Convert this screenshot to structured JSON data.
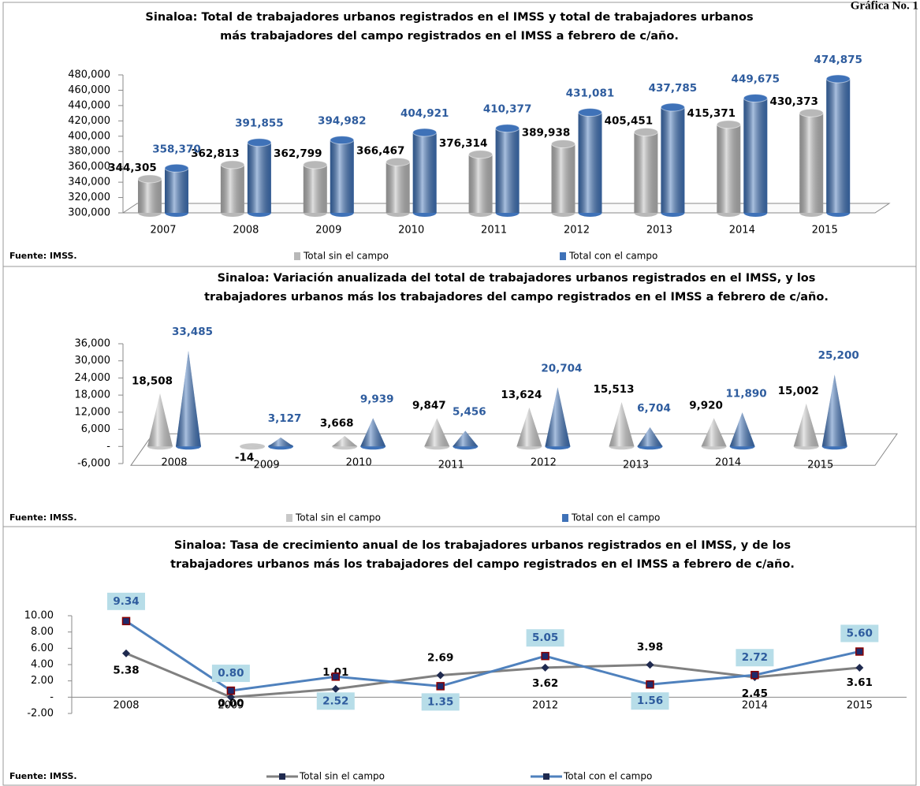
{
  "header": {
    "label": "Gráfica No. 1"
  },
  "chart_data": [
    {
      "type": "bar",
      "title": [
        "Sinaloa: Total de trabajadores urbanos registrados en el IMSS y total de trabajadores urbanos",
        "más trabajadores del campo registrados en el IMSS a febrero de c/año."
      ],
      "source": "Fuente: IMSS.",
      "categories": [
        "2007",
        "2008",
        "2009",
        "2010",
        "2011",
        "2012",
        "2013",
        "2014",
        "2015"
      ],
      "series": [
        {
          "name": "Total sin el campo",
          "color": "#b8b8b8",
          "values": [
            344305,
            362813,
            362799,
            366467,
            376314,
            389938,
            405451,
            415371,
            430373
          ],
          "value_labels": [
            "344,305",
            "362,813",
            "362,799",
            "366,467",
            "376,314",
            "389,938",
            "405,451",
            "415,371",
            "430,373"
          ]
        },
        {
          "name": "Total con el campo",
          "color": "#3f72b8",
          "values": [
            358370,
            391855,
            394982,
            404921,
            410377,
            431081,
            437785,
            449675,
            474875
          ],
          "value_labels": [
            "358,370",
            "391,855",
            "394,982",
            "404,921",
            "410,377",
            "431,081",
            "437,785",
            "449,675",
            "474,875"
          ]
        }
      ],
      "ylim": [
        300000,
        480000
      ],
      "yticks": [
        {
          "value": 300000,
          "label": "300,000"
        },
        {
          "value": 320000,
          "label": "320,000"
        },
        {
          "value": 340000,
          "label": "340,000"
        },
        {
          "value": 360000,
          "label": "360,000"
        },
        {
          "value": 380000,
          "label": "380,000"
        },
        {
          "value": 400000,
          "label": "400,000"
        },
        {
          "value": 420000,
          "label": "420,000"
        },
        {
          "value": 440000,
          "label": "440,000"
        },
        {
          "value": 460000,
          "label": "460,000"
        },
        {
          "value": 480000,
          "label": "480,000"
        }
      ]
    },
    {
      "type": "cone",
      "title": [
        "Sinaloa: Variación anualizada del total de trabajadores urbanos registrados en el IMSS, y los",
        "trabajadores urbanos más los trabajadores del campo registrados en el IMSS a febrero de c/año."
      ],
      "source": "Fuente: IMSS.",
      "categories": [
        "2008",
        "2009",
        "2010",
        "2011",
        "2012",
        "2013",
        "2014",
        "2015"
      ],
      "series": [
        {
          "name": "Total sin el campo",
          "color": "#c8c8c8",
          "values": [
            18508,
            -14,
            3668,
            9847,
            13624,
            15513,
            9920,
            15002
          ],
          "value_labels": [
            "18,508",
            "-14",
            "3,668",
            "9,847",
            "13,624",
            "15,513",
            "9,920",
            "15,002"
          ]
        },
        {
          "name": "Total con el campo",
          "color": "#3f72b8",
          "values": [
            33485,
            3127,
            9939,
            5456,
            20704,
            6704,
            11890,
            25200
          ],
          "value_labels": [
            "33,485",
            "3,127",
            "9,939",
            "5,456",
            "20,704",
            "6,704",
            "11,890",
            "25,200"
          ]
        }
      ],
      "ylim": [
        -6000,
        36000
      ],
      "yticks": [
        {
          "value": -6000,
          "label": "-6,000"
        },
        {
          "value": 0,
          "label": "-"
        },
        {
          "value": 6000,
          "label": "6,000"
        },
        {
          "value": 12000,
          "label": "12,000"
        },
        {
          "value": 18000,
          "label": "18,000"
        },
        {
          "value": 24000,
          "label": "24,000"
        },
        {
          "value": 30000,
          "label": "30,000"
        },
        {
          "value": 36000,
          "label": "36,000"
        }
      ]
    },
    {
      "type": "line",
      "title": [
        "Sinaloa: Tasa de crecimiento anual de los trabajadores urbanos registrados en el IMSS, y de los",
        "trabajadores urbanos más los trabajadores del campo registrados en el IMSS a febrero de c/año."
      ],
      "source": "Fuente: IMSS.",
      "categories": [
        "2008",
        "2009",
        "2010",
        "2011",
        "2012",
        "2013",
        "2014",
        "2015"
      ],
      "series": [
        {
          "name": "Total sin el campo",
          "color": "#808080",
          "values": [
            5.38,
            0.0,
            1.01,
            2.69,
            3.62,
            3.98,
            2.45,
            3.61
          ],
          "value_labels": [
            "5.38",
            "0.00",
            "1.01",
            "2.69",
            "3.62",
            "3.98",
            "2.45",
            "3.61"
          ]
        },
        {
          "name": "Total con el campo",
          "color": "#4f81bd",
          "values": [
            9.34,
            0.8,
            2.52,
            1.35,
            5.05,
            1.56,
            2.72,
            5.6
          ],
          "value_labels": [
            "9.34",
            "0.80",
            "2.52",
            "1.35",
            "5.05",
            "1.56",
            "2.72",
            "5.60"
          ]
        }
      ],
      "ylim": [
        -2,
        10
      ],
      "yticks": [
        {
          "value": -2,
          "label": "-2.00"
        },
        {
          "value": 0,
          "label": "-"
        },
        {
          "value": 2,
          "label": "2.00"
        },
        {
          "value": 4,
          "label": "4.00"
        },
        {
          "value": 6,
          "label": "6.00"
        },
        {
          "value": 8,
          "label": "8.00"
        },
        {
          "value": 10,
          "label": "10.00"
        }
      ]
    }
  ]
}
